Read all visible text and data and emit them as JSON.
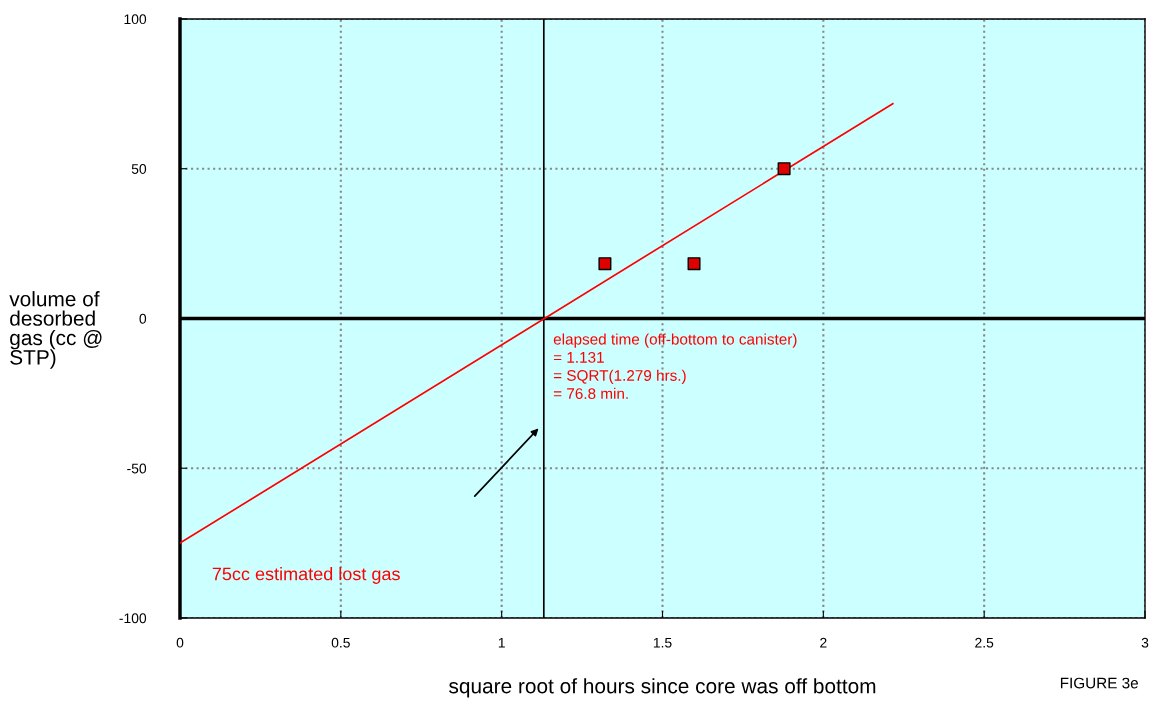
{
  "chart_data": {
    "type": "scatter",
    "xlabel": "square root of hours since core was off bottom",
    "ylabel": "volume of\ndesorbed\ngas (cc @\nSTP)",
    "series": [
      {
        "color": "#e00000",
        "marker": "square",
        "x": [
          1.321,
          1.598,
          1.878
        ],
        "values": [
          18.3,
          18.3,
          50
        ]
      },
      {
        "type": "line",
        "color": "#ff0000",
        "marker": "none",
        "x": [
          0,
          2.216
        ],
        "values": [
          -75,
          71.7
        ]
      }
    ],
    "xlim": [
      0,
      3
    ],
    "ylim": [
      -100,
      100
    ],
    "xticks": [
      0,
      0.5,
      1,
      1.5,
      2,
      2.5,
      3
    ],
    "yticks": [
      -100,
      -50,
      0,
      50,
      100
    ],
    "grid": true,
    "ref_lines": [
      {
        "axis": "x",
        "value": 1.131,
        "color": "#000000"
      },
      {
        "axis": "y",
        "value": 0,
        "color": "#000000"
      }
    ],
    "annotations": [
      "elapsed time (off-bottom to canister)\n= 1.131\n= SQRT(1.279 hrs.)\n= 76.8 min.",
      "75cc estimated lost gas",
      "FIGURE 3e"
    ]
  }
}
